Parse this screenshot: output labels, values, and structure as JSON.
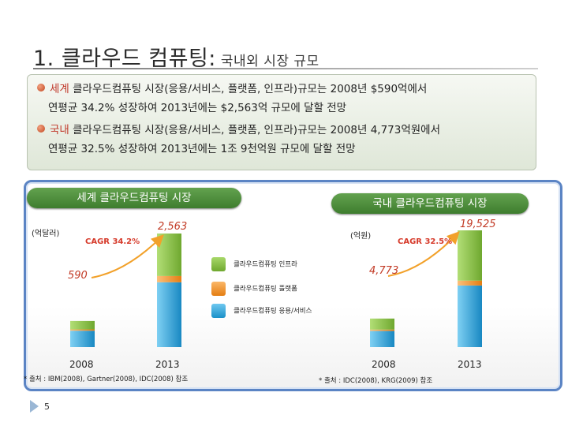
{
  "title": "1. 클라우드 컴퓨팅:",
  "subtitle": "국내외 시장 규모",
  "summary": {
    "world_line1_hl": "세계",
    "world_line1": " 클라우드컴퓨팅 시장(응용/서비스, 플랫폼, 인프라)규모는 2008년 $590억에서",
    "world_line2": "연평균 34.2% 성장하여 2013년에는 $2,563억 규모에 달할 전망",
    "korea_line1_hl": "국내",
    "korea_line1": " 클라우드컴퓨팅 시장(응용/서비스, 플랫폼, 인프라)규모는 2008년 4,773억원에서",
    "korea_line2": "연평균 32.5% 성장하여 2013년에는 1조 9천억원 규모에 달할 전망"
  },
  "panels": {
    "world": {
      "header": "세계 클라우드컴퓨팅 시장",
      "unit": "(억달러)",
      "cagr": "CAGR 34.2%",
      "source": "* 출처 : IBM(2008), Gartner(2008), IDC(2008) 참조"
    },
    "korea": {
      "header": "국내 클라우드컴퓨팅 시장",
      "unit": "(억원)",
      "cagr": "CAGR 32.5%",
      "source": "* 출처 : IDC(2008), KRG(2009) 참조"
    }
  },
  "legend": {
    "infra": "클라우드컴퓨팅 인프라",
    "platform": "클라우드컴퓨팅 플랫폼",
    "service": "클라우드컴퓨팅 응용/서비스"
  },
  "page_number": "5",
  "colors": {
    "infra": "#8cc63f",
    "platform": "#f7941d",
    "service": "#29abe2",
    "header_green": "#4a8c38",
    "accent_red": "#c23a25",
    "panel_border": "#5b84c4"
  },
  "chart_data": [
    {
      "type": "bar",
      "stacked": true,
      "categories": [
        "2008",
        "2013"
      ],
      "totals": [
        590,
        2563
      ],
      "total_labels": [
        "590",
        "2,563"
      ],
      "series": [
        {
          "name": "클라우드컴퓨팅 인프라",
          "values": [
            190,
            960
          ]
        },
        {
          "name": "클라우드컴퓨팅 플랫폼",
          "values": [
            30,
            140
          ]
        },
        {
          "name": "클라우드컴퓨팅 응용/서비스",
          "values": [
            370,
            1463
          ]
        }
      ],
      "title": "세계 클라우드컴퓨팅 시장",
      "ylabel": "(억달러)",
      "annotation": "CAGR 34.2%"
    },
    {
      "type": "bar",
      "stacked": true,
      "categories": [
        "2008",
        "2013"
      ],
      "totals": [
        4773,
        19525
      ],
      "total_labels": [
        "4,773",
        "19,525"
      ],
      "series": [
        {
          "name": "클라우드컴퓨팅 인프라",
          "values": [
            1850,
            8400
          ]
        },
        {
          "name": "클라우드컴퓨팅 플랫폼",
          "values": [
            230,
            820
          ]
        },
        {
          "name": "클라우드컴퓨팅 응용/서비스",
          "values": [
            2693,
            10305
          ]
        }
      ],
      "title": "국내 클라우드컴퓨팅 시장",
      "ylabel": "(억원)",
      "annotation": "CAGR 32.5%"
    }
  ]
}
